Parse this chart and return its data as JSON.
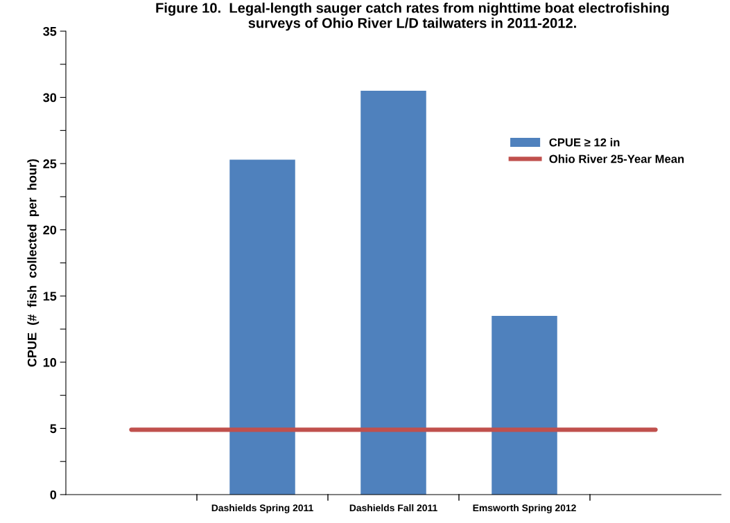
{
  "chart_data": {
    "type": "bar",
    "title": "Figure 10.  Legal-length sauger catch rates from nighttime boat electrofishing\nsurveys of Ohio River L/D tailwaters in 2011-2012.",
    "ylabel": "CPUE  (#  fish  collected  per  hour)",
    "categories": [
      null,
      "Dashields Spring 2011",
      "Dashields Fall 2011",
      "Emsworth Spring 2012",
      null
    ],
    "series": [
      {
        "name": "CPUE ≥ 12 in",
        "color": "#4f81bd",
        "values": [
          null,
          25.3,
          30.5,
          13.5,
          null
        ]
      },
      {
        "name": "Ohio River 25-Year Mean",
        "type": "line",
        "color": "#c0504d",
        "values": [
          4.9,
          4.9,
          4.9,
          4.9,
          4.9
        ]
      }
    ],
    "ylim": [
      0,
      35
    ],
    "yticks": [
      0,
      {
        "value": 2.5,
        "label": null
      },
      5,
      {
        "value": 7.5,
        "label": null
      },
      10,
      {
        "value": 12.5,
        "label": null
      },
      15,
      {
        "value": 17.5,
        "label": null
      },
      20,
      {
        "value": 22.5,
        "label": null
      },
      25,
      {
        "value": 27.5,
        "label": null
      },
      30,
      {
        "value": 32.5,
        "label": null
      },
      35
    ],
    "grid": false,
    "legend": "right",
    "marker": "none"
  }
}
